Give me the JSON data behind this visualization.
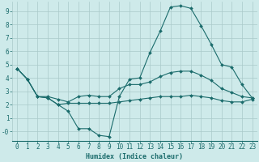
{
  "xlabel": "Humidex (Indice chaleur)",
  "bg_color": "#ceeaea",
  "grid_color": "#aacaca",
  "line_color": "#1a6b6b",
  "xlim": [
    -0.5,
    23.5
  ],
  "ylim": [
    -0.7,
    9.7
  ],
  "xticks": [
    0,
    1,
    2,
    3,
    4,
    5,
    6,
    7,
    8,
    9,
    10,
    11,
    12,
    13,
    14,
    15,
    16,
    17,
    18,
    19,
    20,
    21,
    22,
    23
  ],
  "yticks": [
    0,
    1,
    2,
    3,
    4,
    5,
    6,
    7,
    8,
    9
  ],
  "ytick_labels": [
    "-0",
    "1",
    "2",
    "3",
    "4",
    "5",
    "6",
    "7",
    "8",
    "9"
  ],
  "line1_x": [
    0,
    1,
    2,
    3,
    4,
    5,
    6,
    7,
    8,
    9,
    10,
    11,
    12,
    13,
    14,
    15,
    16,
    17,
    18,
    19,
    20,
    21,
    22,
    23
  ],
  "line1_y": [
    4.7,
    3.9,
    2.6,
    2.5,
    2.0,
    1.5,
    0.2,
    0.2,
    -0.3,
    -0.4,
    2.6,
    3.9,
    4.0,
    5.9,
    7.5,
    9.3,
    9.4,
    9.2,
    7.9,
    6.5,
    5.0,
    4.8,
    3.5,
    2.5
  ],
  "line2_x": [
    0,
    1,
    2,
    3,
    4,
    5,
    6,
    7,
    8,
    9,
    10,
    11,
    12,
    13,
    14,
    15,
    16,
    17,
    18,
    19,
    20,
    21,
    22,
    23
  ],
  "line2_y": [
    4.7,
    3.9,
    2.6,
    2.5,
    2.0,
    2.1,
    2.1,
    2.1,
    2.1,
    2.1,
    2.2,
    2.3,
    2.4,
    2.5,
    2.6,
    2.6,
    2.6,
    2.7,
    2.6,
    2.5,
    2.3,
    2.2,
    2.2,
    2.4
  ],
  "line3_x": [
    0,
    1,
    2,
    3,
    4,
    5,
    6,
    7,
    8,
    9,
    10,
    11,
    12,
    13,
    14,
    15,
    16,
    17,
    18,
    19,
    20,
    21,
    22,
    23
  ],
  "line3_y": [
    4.7,
    3.9,
    2.6,
    2.6,
    2.4,
    2.2,
    2.6,
    2.7,
    2.6,
    2.6,
    3.2,
    3.5,
    3.5,
    3.7,
    4.1,
    4.4,
    4.5,
    4.5,
    4.2,
    3.8,
    3.2,
    2.9,
    2.6,
    2.5
  ],
  "tick_fontsize": 5.5,
  "xlabel_fontsize": 6.0,
  "marker_size": 2.0,
  "line_width": 0.8
}
